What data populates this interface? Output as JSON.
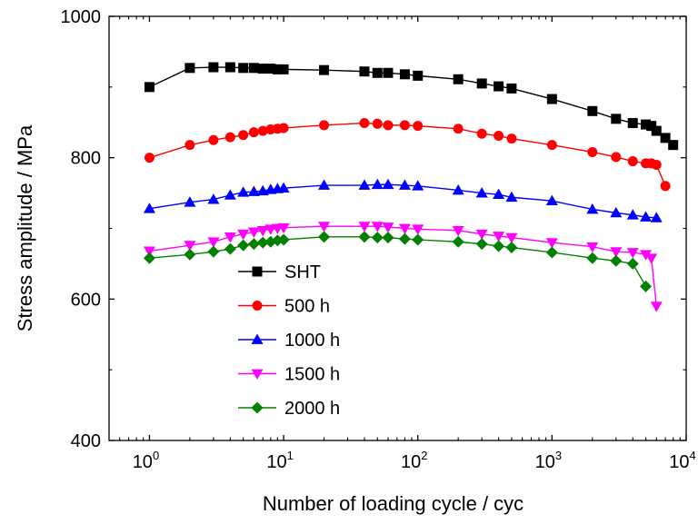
{
  "chart_data": {
    "type": "line",
    "xlabel": "Number of loading cycle / cyc",
    "ylabel": "Stress amplitude / MPa",
    "xscale": "log",
    "xlim": [
      0.5,
      10000
    ],
    "ylim": [
      400,
      1000
    ],
    "x_ticks": [
      {
        "base": "10",
        "exp": "0",
        "value": 1
      },
      {
        "base": "10",
        "exp": "1",
        "value": 10
      },
      {
        "base": "10",
        "exp": "2",
        "value": 100
      },
      {
        "base": "10",
        "exp": "3",
        "value": 1000
      },
      {
        "base": "10",
        "exp": "4",
        "value": 10000
      }
    ],
    "y_ticks": [
      "400",
      "600",
      "800",
      "1000"
    ],
    "grid": false,
    "legend_position": "lower-left inside",
    "series": [
      {
        "name": "SHT",
        "color": "#000000",
        "marker": "square",
        "x": [
          1,
          2,
          3,
          4,
          5,
          6,
          7,
          8,
          9,
          10,
          20,
          40,
          50,
          60,
          80,
          100,
          200,
          300,
          400,
          500,
          1000,
          2000,
          3000,
          4000,
          5000,
          5500,
          6000,
          7000,
          8000
        ],
        "y": [
          900,
          927,
          928,
          928,
          927,
          927,
          926,
          926,
          925,
          925,
          924,
          922,
          920,
          920,
          918,
          916,
          911,
          905,
          901,
          898,
          883,
          866,
          855,
          849,
          847,
          845,
          838,
          828,
          818
        ]
      },
      {
        "name": "500 h",
        "color": "#ff0000",
        "marker": "circle",
        "x": [
          1,
          2,
          3,
          4,
          5,
          6,
          7,
          8,
          9,
          10,
          20,
          40,
          50,
          60,
          80,
          100,
          200,
          300,
          400,
          500,
          1000,
          2000,
          3000,
          4000,
          5000,
          5500,
          6000,
          7000
        ],
        "y": [
          800,
          818,
          825,
          829,
          832,
          836,
          838,
          840,
          841,
          842,
          846,
          849,
          848,
          846,
          846,
          845,
          841,
          834,
          831,
          827,
          818,
          808,
          801,
          795,
          792,
          792,
          790,
          760
        ]
      },
      {
        "name": "1000 h",
        "color": "#0000ff",
        "marker": "triangle-up",
        "x": [
          1,
          2,
          3,
          4,
          5,
          6,
          7,
          8,
          9,
          10,
          20,
          40,
          50,
          60,
          80,
          100,
          200,
          300,
          400,
          500,
          1000,
          2000,
          3000,
          4000,
          5000,
          6000
        ],
        "y": [
          728,
          737,
          741,
          747,
          751,
          752,
          753,
          755,
          756,
          757,
          761,
          761,
          762,
          762,
          761,
          760,
          754,
          750,
          748,
          744,
          739,
          727,
          722,
          719,
          716,
          715
        ]
      },
      {
        "name": "1500 h",
        "color": "#ff00ff",
        "marker": "triangle-down",
        "x": [
          1,
          2,
          3,
          4,
          5,
          6,
          7,
          8,
          9,
          10,
          20,
          40,
          50,
          60,
          80,
          100,
          200,
          300,
          400,
          500,
          1000,
          2000,
          3000,
          4000,
          5000,
          5500,
          6000
        ],
        "y": [
          668,
          676,
          681,
          688,
          692,
          695,
          697,
          699,
          700,
          701,
          703,
          703,
          703,
          702,
          700,
          699,
          697,
          692,
          689,
          687,
          680,
          674,
          667,
          666,
          663,
          658,
          590
        ]
      },
      {
        "name": "2000 h",
        "color": "#008000",
        "marker": "diamond",
        "x": [
          1,
          2,
          3,
          4,
          5,
          6,
          7,
          8,
          9,
          10,
          20,
          40,
          50,
          60,
          80,
          100,
          200,
          300,
          400,
          500,
          1000,
          2000,
          3000,
          4000,
          5000
        ],
        "y": [
          658,
          663,
          667,
          671,
          676,
          678,
          680,
          681,
          683,
          684,
          688,
          688,
          687,
          687,
          685,
          684,
          681,
          678,
          675,
          673,
          666,
          658,
          654,
          650,
          618
        ]
      }
    ]
  }
}
